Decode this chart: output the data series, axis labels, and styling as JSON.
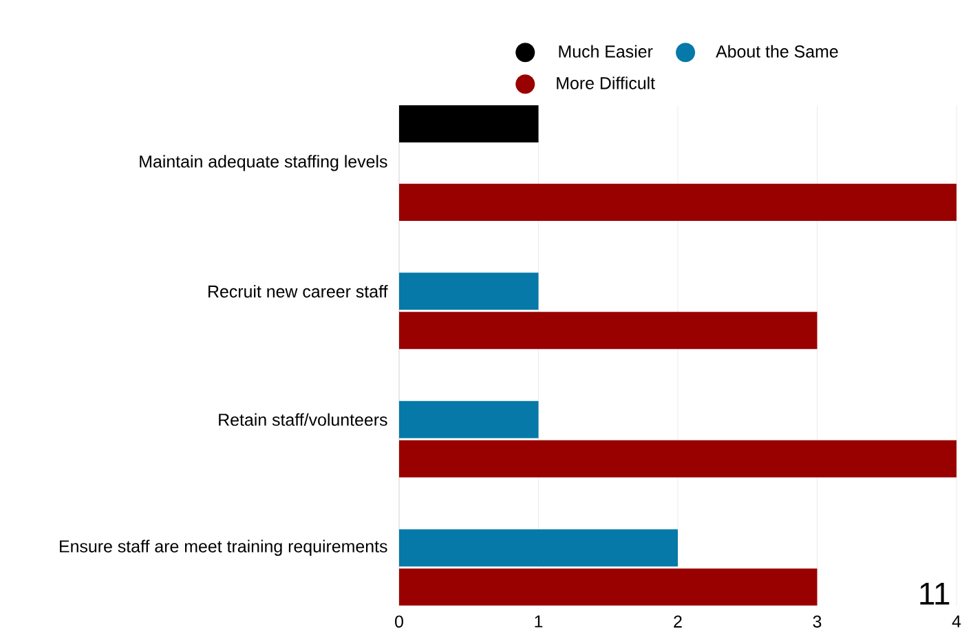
{
  "chart_data": {
    "type": "bar",
    "orientation": "horizontal",
    "categories": [
      "Maintain adequate staffing levels",
      "Recruit new career staff",
      "Retain staff/volunteers",
      "Ensure staff are meet training requirements"
    ],
    "series": [
      {
        "name": "Much Easier",
        "color": "#000000",
        "values": [
          1,
          null,
          null,
          null
        ]
      },
      {
        "name": "About the Same",
        "color": "#0679a8",
        "values": [
          null,
          1,
          1,
          2
        ]
      },
      {
        "name": "More Difficult",
        "color": "#990000",
        "values": [
          4,
          3,
          4,
          3
        ]
      }
    ],
    "xlim": [
      0,
      4
    ],
    "xticks": [
      0,
      1,
      2,
      3,
      4
    ],
    "grid": "x",
    "legend": "top",
    "annotations": [
      "11"
    ]
  }
}
